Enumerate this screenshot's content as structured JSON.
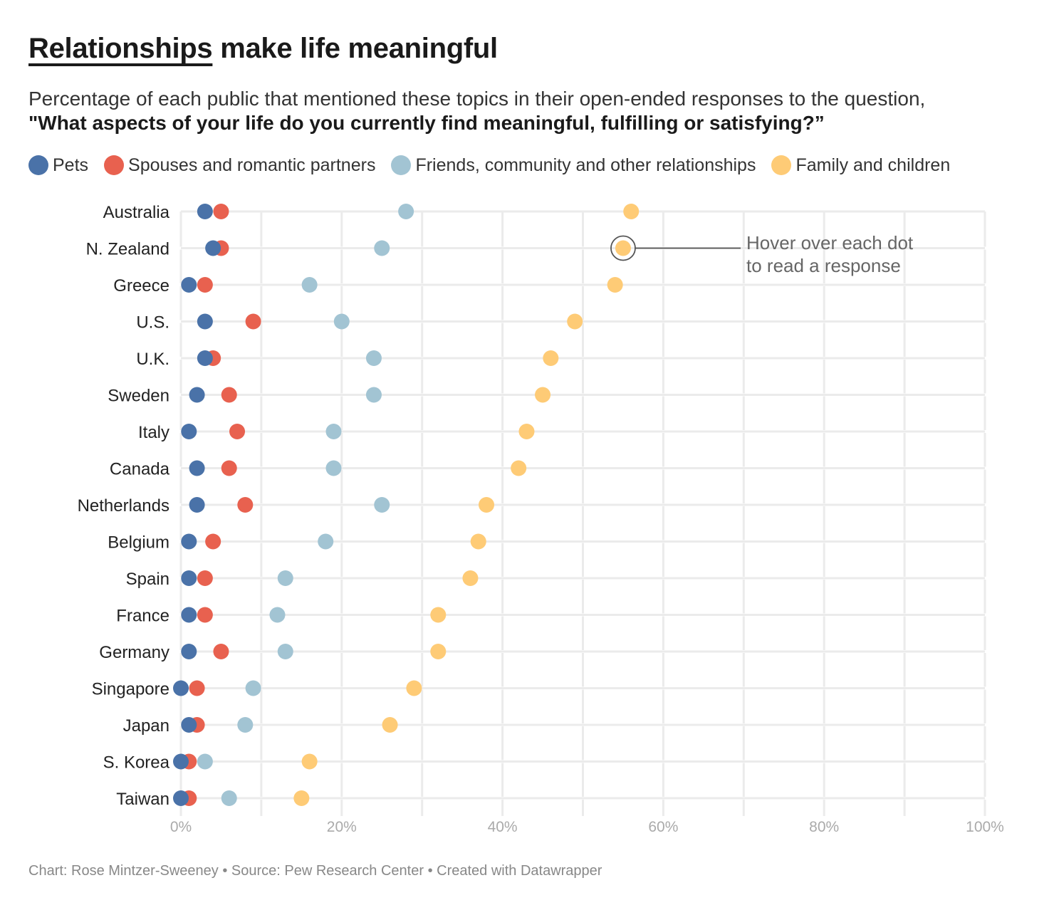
{
  "title": {
    "underlined": "Relationships",
    "rest": " make life meaningful"
  },
  "subtitle": {
    "text": "Percentage of each public that mentioned these topics in their open-ended responses to the question,",
    "question": "\"What aspects of your life do you currently find meaningful, fulfilling or satisfying?”"
  },
  "annotation": {
    "line1": "Hover over each dot",
    "line2": "to read a response"
  },
  "footer": "Chart: Rose Mintzer-Sweeney • Source: Pew Research Center • Created with Datawrapper",
  "chart_data": {
    "type": "scatter",
    "xlim": [
      0,
      100
    ],
    "x_ticks": [
      0,
      20,
      40,
      60,
      80,
      100
    ],
    "x_tick_labels": [
      "0%",
      "20%",
      "40%",
      "60%",
      "80%",
      "100%"
    ],
    "grid": true,
    "legend_position": "top",
    "categories": [
      "Australia",
      "N. Zealand",
      "Greece",
      "U.S.",
      "U.K.",
      "Sweden",
      "Italy",
      "Canada",
      "Netherlands",
      "Belgium",
      "Spain",
      "France",
      "Germany",
      "Singapore",
      "Japan",
      "S. Korea",
      "Taiwan"
    ],
    "series": [
      {
        "name": "Pets",
        "color": "#4a72a8",
        "values": [
          3,
          4,
          1,
          3,
          3,
          2,
          1,
          2,
          2,
          1,
          1,
          1,
          1,
          0,
          1,
          0,
          0
        ]
      },
      {
        "name": "Spouses and romantic partners",
        "color": "#e8614f",
        "values": [
          5,
          5,
          3,
          9,
          4,
          6,
          7,
          6,
          8,
          4,
          3,
          3,
          5,
          2,
          2,
          1,
          1
        ]
      },
      {
        "name": "Friends, community and other relationships",
        "color": "#a2c4d3",
        "values": [
          28,
          25,
          16,
          20,
          24,
          24,
          19,
          19,
          25,
          18,
          13,
          12,
          13,
          9,
          8,
          3,
          6
        ]
      },
      {
        "name": "Family and children",
        "color": "#fecb76",
        "values": [
          56,
          55,
          54,
          49,
          46,
          45,
          43,
          42,
          38,
          37,
          36,
          32,
          32,
          29,
          26,
          16,
          15
        ]
      }
    ],
    "highlight": {
      "category": "N. Zealand",
      "series": "Family and children"
    }
  }
}
